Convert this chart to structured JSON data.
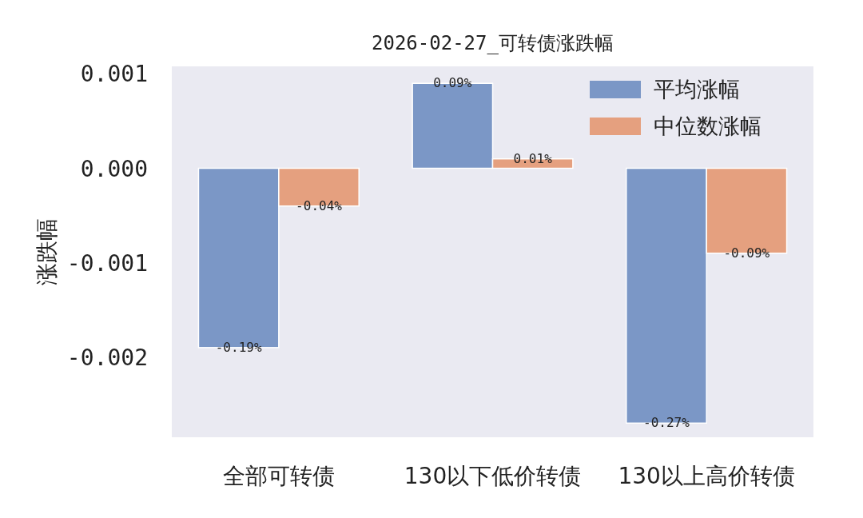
{
  "chart_data": {
    "type": "bar",
    "title": "2026-02-27_可转债涨跌幅",
    "ylabel": "涨跌幅",
    "categories": [
      "全部可转债",
      "130以下低价转债",
      "130以上高价转债"
    ],
    "series": [
      {
        "name": "平均涨幅",
        "color": "#7b97c6",
        "values": [
          -0.0019,
          0.0009,
          -0.0027
        ],
        "value_labels": [
          "-0.19%",
          "0.09%",
          "-0.27%"
        ]
      },
      {
        "name": "中位数涨幅",
        "color": "#e5a07f",
        "values": [
          -0.0004,
          0.0001,
          -0.0009
        ],
        "value_labels": [
          "-0.04%",
          "0.01%",
          "-0.09%"
        ]
      }
    ],
    "ylim": [
      -0.00285,
      0.00108
    ],
    "yticks": [
      0.001,
      {
        "value": 0,
        "label": "0.000"
      },
      -0.001,
      -0.002
    ],
    "legend": "top right"
  }
}
